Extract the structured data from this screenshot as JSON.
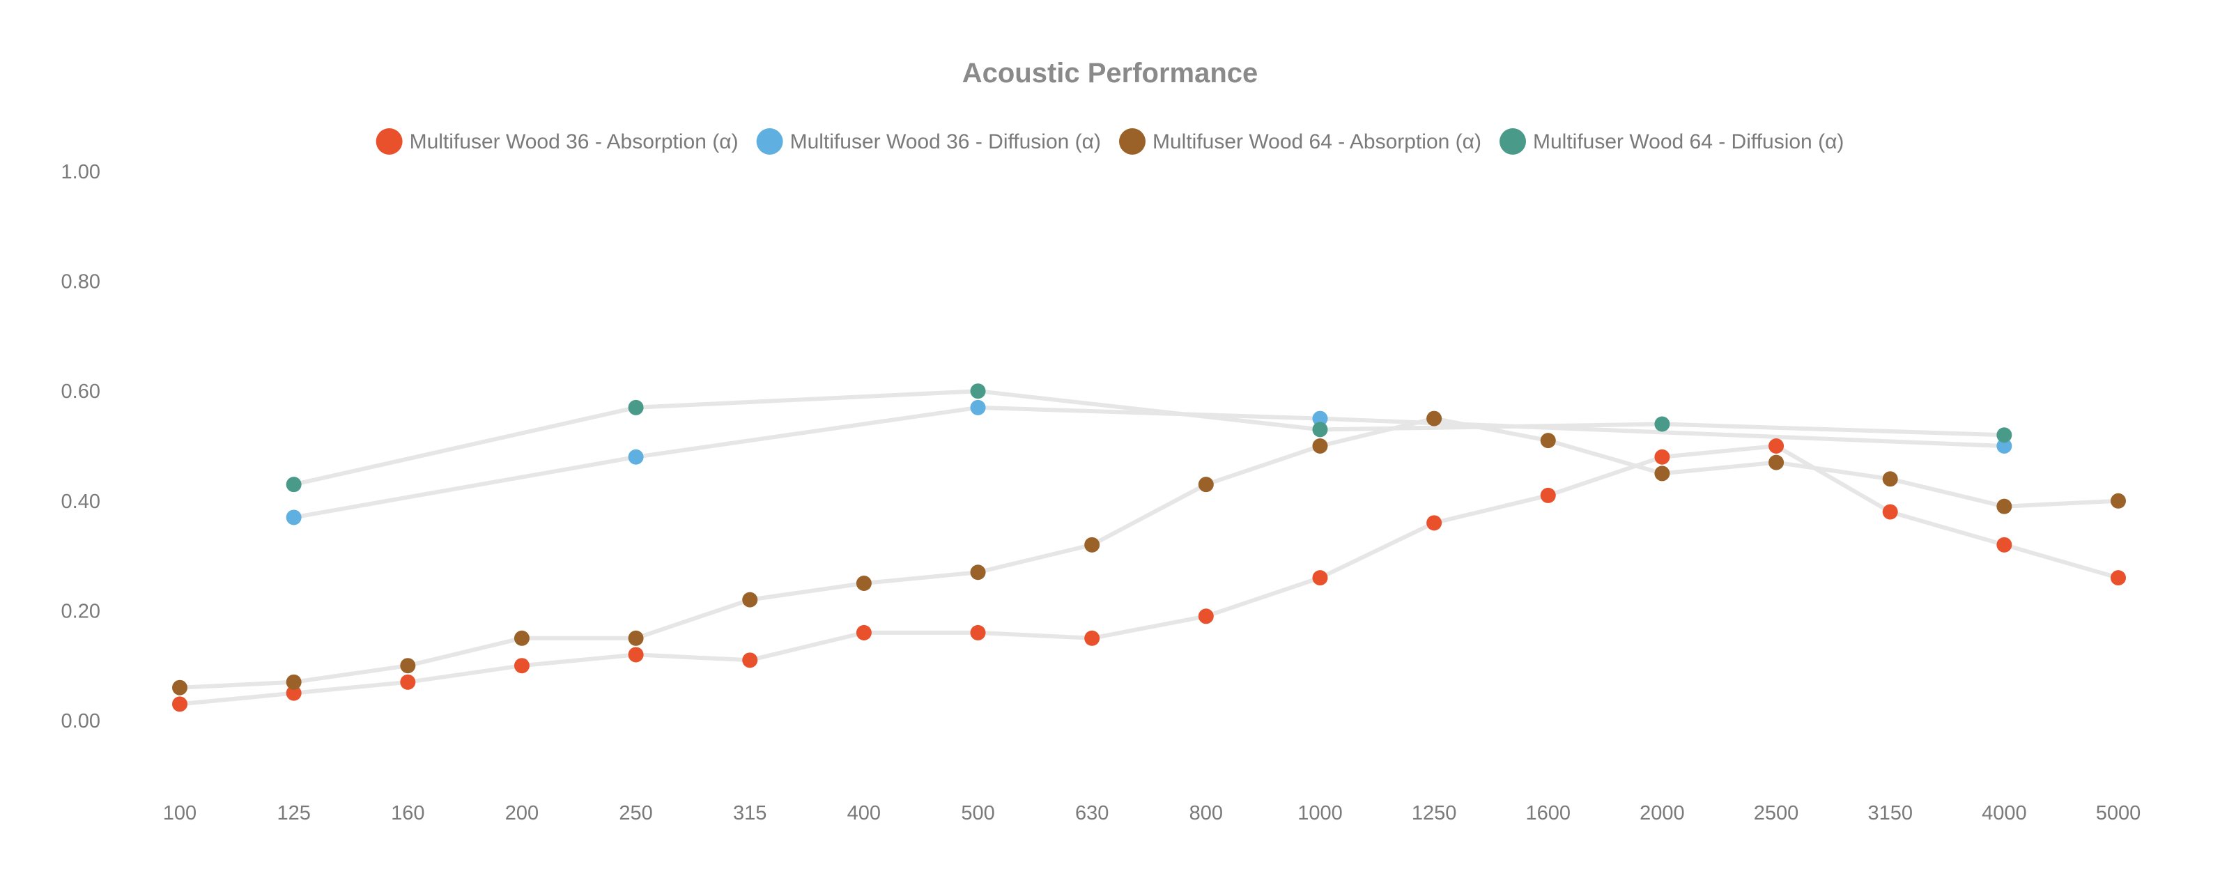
{
  "chart_data": {
    "type": "line",
    "title": "Acoustic Performance",
    "xlabel": "",
    "ylabel": "",
    "categories": [
      "100",
      "125",
      "160",
      "200",
      "250",
      "315",
      "400",
      "500",
      "630",
      "800",
      "1000",
      "1250",
      "1600",
      "2000",
      "2500",
      "3150",
      "4000",
      "5000"
    ],
    "ylim": [
      0,
      1
    ],
    "y_ticks": [
      "0.00",
      "0.20",
      "0.40",
      "0.60",
      "0.80",
      "1.00"
    ],
    "y_tick_values": [
      0,
      0.2,
      0.4,
      0.6,
      0.8,
      1.0
    ],
    "grid": false,
    "legend_position": "top",
    "line_color": "#e6e6e6",
    "series": [
      {
        "name": "Multifuser Wood 36 - Absorption (α)",
        "color": "#e8512b",
        "values": [
          0.03,
          0.05,
          0.07,
          0.1,
          0.12,
          0.11,
          0.16,
          0.16,
          0.15,
          0.19,
          0.26,
          0.36,
          0.41,
          0.48,
          0.5,
          0.38,
          0.32,
          0.26
        ]
      },
      {
        "name": "Multifuser Wood 36 - Diffusion (α)",
        "color": "#5fb0e0",
        "values": [
          null,
          0.37,
          null,
          null,
          0.48,
          null,
          null,
          0.57,
          null,
          null,
          0.55,
          null,
          null,
          null,
          null,
          null,
          0.5,
          null
        ]
      },
      {
        "name": "Multifuser Wood 64 - Absorption (α)",
        "color": "#9a6228",
        "values": [
          0.06,
          0.07,
          0.1,
          0.15,
          0.15,
          0.22,
          0.25,
          0.27,
          0.32,
          0.43,
          0.5,
          0.55,
          0.51,
          0.45,
          0.47,
          0.44,
          0.39,
          0.4
        ]
      },
      {
        "name": "Multifuser Wood 64 - Diffusion (α)",
        "color": "#4a9a8a",
        "values": [
          null,
          0.43,
          null,
          null,
          0.57,
          null,
          null,
          0.6,
          null,
          null,
          0.53,
          null,
          null,
          0.54,
          null,
          null,
          0.52,
          null
        ]
      }
    ]
  }
}
